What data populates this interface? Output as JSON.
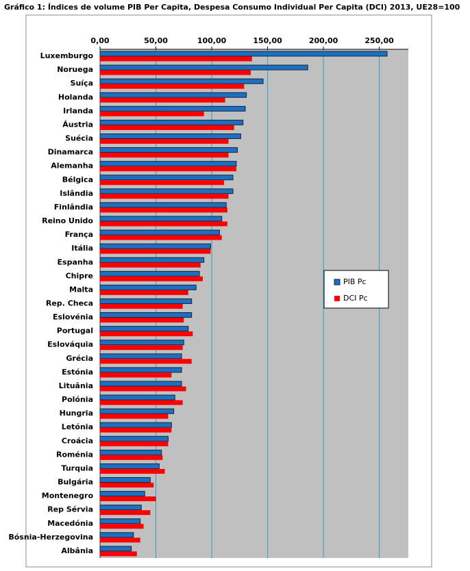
{
  "chart_data": {
    "type": "hbar",
    "title": "Gráfico 1: Índices de volume PIB Per Capita, Despesa Consumo Individual Per Capita (DCI) 2013, UE28=100",
    "categories": [
      "Luxemburgo",
      "Noruega",
      "Suíça",
      "Holanda",
      "Irlanda",
      "Áustria",
      "Suécia",
      "Dinamarca",
      "Alemanha",
      "Bélgica",
      "Islândia",
      "Finlândia",
      "Reino Unido",
      "França",
      "Itália",
      "Espanha",
      "Chipre",
      "Malta",
      "Rep. Checa",
      "Eslovénia",
      "Portugal",
      "Eslováquia",
      "Grécia",
      "Estónia",
      "Lituânia",
      "Polónia",
      "Hungria",
      "Letónia",
      "Croácia",
      "Roménia",
      "Turquia",
      "Bulgária",
      "Montenegro",
      "Rep Sérvia",
      "Macedónia",
      "Bósnia-Herzegovina",
      "Albânia"
    ],
    "series": [
      {
        "name": "PIB Pc",
        "color": "#1f6fc0",
        "values": [
          257,
          186,
          146,
          131,
          130,
          128,
          126,
          123,
          122,
          119,
          119,
          113,
          109,
          107,
          99,
          93,
          89,
          86,
          82,
          82,
          79,
          75,
          73,
          73,
          73,
          67,
          66,
          64,
          61,
          55,
          53,
          45,
          40,
          37,
          36,
          30,
          28
        ]
      },
      {
        "name": "DCI Pc",
        "color": "#ff0000",
        "values": [
          136,
          135,
          129,
          112,
          93,
          120,
          115,
          115,
          122,
          111,
          115,
          114,
          114,
          109,
          99,
          90,
          92,
          79,
          74,
          75,
          83,
          74,
          82,
          64,
          77,
          74,
          61,
          64,
          61,
          56,
          58,
          48,
          50,
          45,
          39,
          36,
          33
        ]
      }
    ],
    "xlim": [
      0,
      276
    ],
    "xticks": [
      {
        "value": 0,
        "label": "0,00"
      },
      {
        "value": 50,
        "label": "50,00"
      },
      {
        "value": 100,
        "label": "100,00"
      },
      {
        "value": 150,
        "label": "150,00"
      },
      {
        "value": 200,
        "label": "200,00"
      },
      {
        "value": 250,
        "label": "250,00"
      }
    ],
    "grid": true
  }
}
